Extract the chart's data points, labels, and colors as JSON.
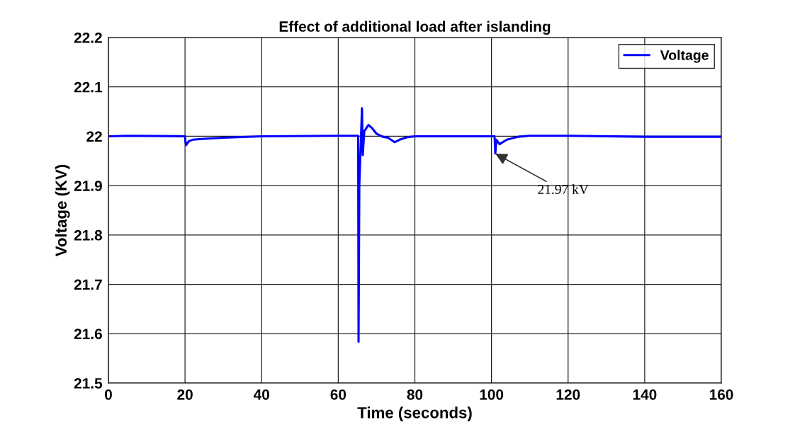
{
  "chart_data": {
    "type": "line",
    "title": "Effect of additional load after islanding",
    "xlabel": "Time (seconds)",
    "ylabel": "Voltage (KV)",
    "series": [
      {
        "name": "Voltage",
        "color": "#0000ff",
        "x": [
          0,
          5,
          20,
          20.1,
          20.3,
          21,
          22,
          25,
          30,
          40,
          60,
          65.2,
          65.3,
          65.5,
          66.2,
          66.4,
          66.8,
          67.9,
          69,
          70,
          71.6,
          73,
          74.7,
          76,
          78,
          80,
          90,
          100.8,
          101,
          101.3,
          102.1,
          104,
          107,
          110,
          120,
          140,
          160
        ],
        "values": [
          22.0,
          22.001,
          22.0,
          21.99,
          21.982,
          21.99,
          21.993,
          21.995,
          21.997,
          22.0,
          22.001,
          22.001,
          21.584,
          21.9,
          22.057,
          21.962,
          22.01,
          22.023,
          22.015,
          22.005,
          21.999,
          21.997,
          21.988,
          21.993,
          21.998,
          22.0,
          22.0,
          22.0,
          21.965,
          21.993,
          21.984,
          21.993,
          21.999,
          22.001,
          22.001,
          21.999,
          21.999
        ]
      }
    ],
    "xlim": [
      0,
      160
    ],
    "xticks": [
      0,
      20,
      40,
      60,
      80,
      100,
      120,
      140,
      160
    ],
    "ylim": [
      21.5,
      22.2
    ],
    "yticks": [
      21.5,
      21.6,
      21.7,
      21.8,
      21.9,
      22,
      22.1,
      22.2
    ],
    "annotations": [
      {
        "text": "21.97 kV",
        "x": 101,
        "y": 21.965
      }
    ],
    "grid": true,
    "legend": "top right",
    "line_style": "solid",
    "marker": "none"
  }
}
